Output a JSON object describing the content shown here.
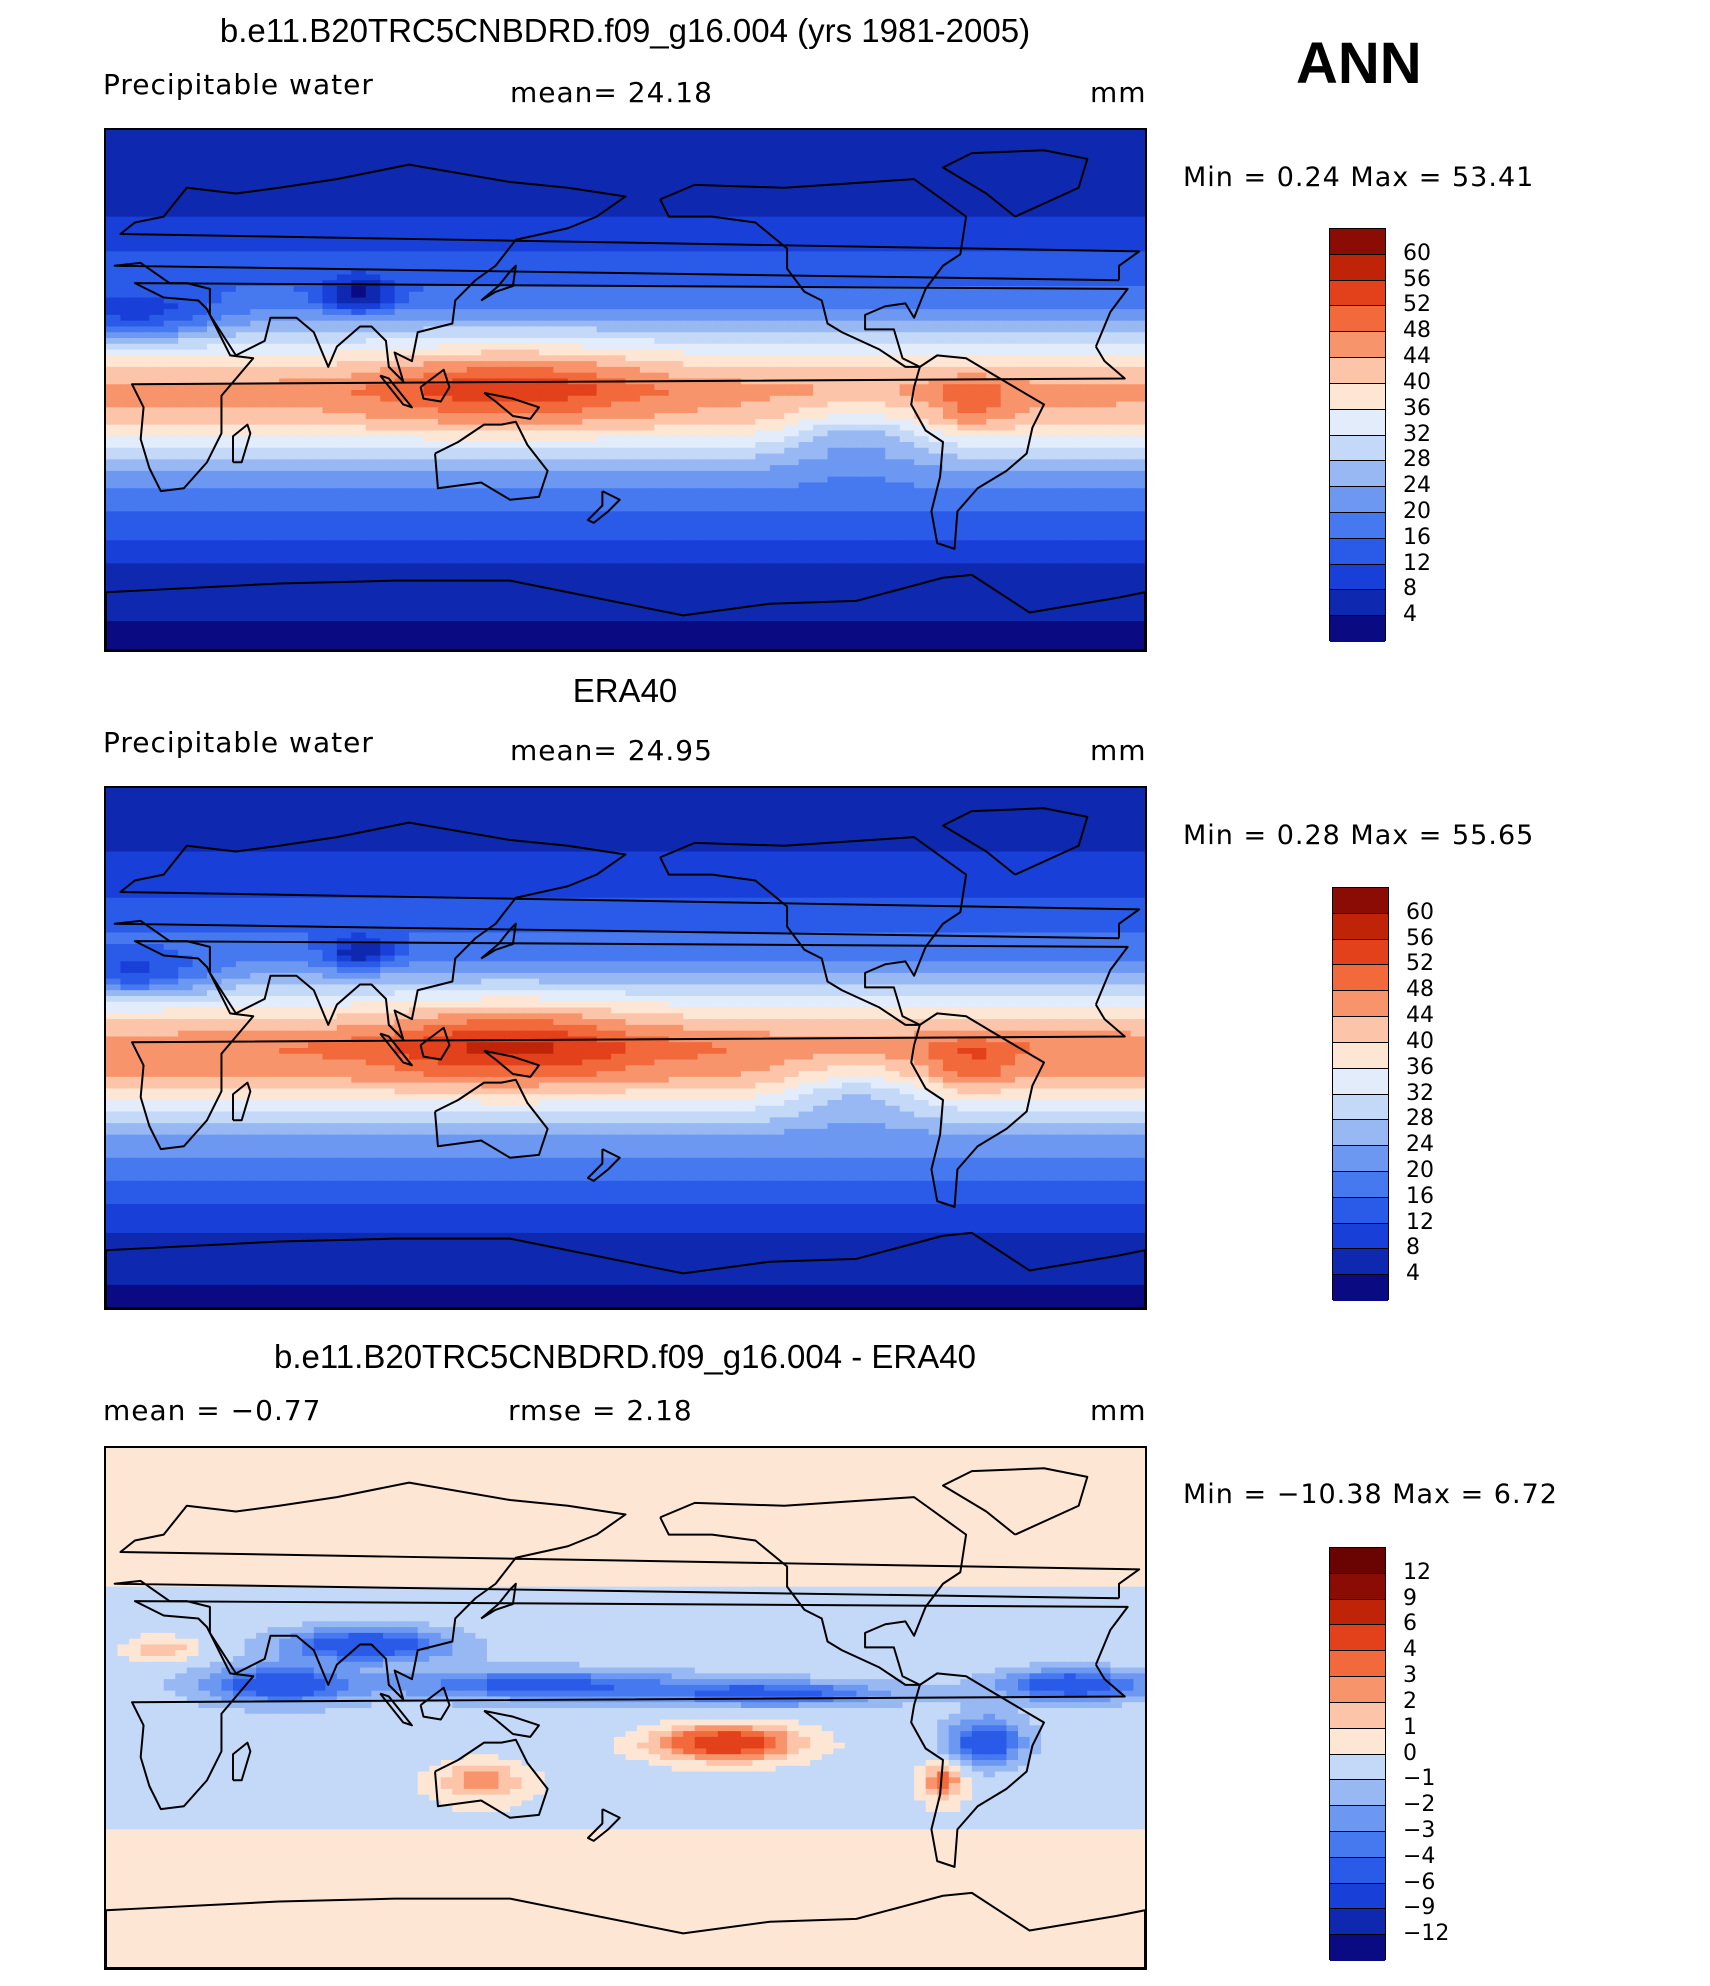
{
  "season": "ANN",
  "panels": [
    {
      "id": "model",
      "title": "b.e11.B20TRC5CNBDRD.f09_g16.004 (yrs 1981-2005)",
      "left_label": "Precipitable  water",
      "center_label": "mean=   24.18",
      "units": "mm",
      "minmax": "Min  =     0.24  Max  =    53.41"
    },
    {
      "id": "obs",
      "title": "ERA40",
      "left_label": "Precipitable  water",
      "center_label": "mean=   24.95",
      "units": "mm",
      "minmax": "Min  =     0.28  Max  =    55.65"
    },
    {
      "id": "diff",
      "title": "b.e11.B20TRC5CNBDRD.f09_g16.004 - ERA40",
      "left_label": "mean  =    −0.77",
      "center_label": "rmse  =     2.18",
      "units": "mm",
      "minmax": "Min  =  −10.38  Max  =     6.72"
    }
  ],
  "chart_data": [
    {
      "type": "heatmap",
      "title": "b.e11.B20TRC5CNBDRD.f09_g16.004 (yrs 1981-2005)",
      "variable": "Precipitable water",
      "units": "mm",
      "mean": 24.18,
      "min": 0.24,
      "max": 53.41,
      "colorbar_levels": [
        4,
        8,
        12,
        16,
        20,
        24,
        28,
        32,
        36,
        40,
        44,
        48,
        52,
        56,
        60
      ],
      "colorbar_colors": [
        "#0a0a82",
        "#0e28b0",
        "#1840d8",
        "#2a5ae8",
        "#4678f0",
        "#6c98f2",
        "#98b8f4",
        "#c4d8f8",
        "#e2ecfa",
        "#fde6d4",
        "#fcc4a8",
        "#f8946c",
        "#f26a3c",
        "#e3401c",
        "#c02408",
        "#8a0c04"
      ],
      "field_profile_lat": [
        90,
        60,
        30,
        10,
        0,
        -10,
        -30,
        -60,
        -90
      ],
      "field_profile_values": [
        4,
        8,
        18,
        38,
        46,
        42,
        22,
        8,
        2
      ]
    },
    {
      "type": "heatmap",
      "title": "ERA40",
      "variable": "Precipitable water",
      "units": "mm",
      "mean": 24.95,
      "min": 0.28,
      "max": 55.65,
      "colorbar_levels": [
        4,
        8,
        12,
        16,
        20,
        24,
        28,
        32,
        36,
        40,
        44,
        48,
        52,
        56,
        60
      ],
      "colorbar_colors": [
        "#0a0a82",
        "#0e28b0",
        "#1840d8",
        "#2a5ae8",
        "#4678f0",
        "#6c98f2",
        "#98b8f4",
        "#c4d8f8",
        "#e2ecfa",
        "#fde6d4",
        "#fcc4a8",
        "#f8946c",
        "#f26a3c",
        "#e3401c",
        "#c02408",
        "#8a0c04"
      ],
      "field_profile_lat": [
        90,
        60,
        30,
        10,
        0,
        -10,
        -30,
        -60,
        -90
      ],
      "field_profile_values": [
        5,
        9,
        20,
        40,
        48,
        44,
        24,
        9,
        2
      ]
    },
    {
      "type": "heatmap",
      "title": "b.e11.B20TRC5CNBDRD.f09_g16.004 - ERA40",
      "units": "mm",
      "mean": -0.77,
      "rmse": 2.18,
      "min": -10.38,
      "max": 6.72,
      "colorbar_levels": [
        "−12",
        "−9",
        "−6",
        "−4",
        "−3",
        "−2",
        "−1",
        "0",
        "1",
        "2",
        "3",
        "4",
        "6",
        "9",
        "12"
      ],
      "colorbar_colors": [
        "#0a0a82",
        "#0e28b0",
        "#1840d8",
        "#2a5ae8",
        "#4678f0",
        "#6c98f2",
        "#98b8f4",
        "#c4d8f8",
        "#fde6d4",
        "#fcc4a8",
        "#f8946c",
        "#f26a3c",
        "#e3401c",
        "#c02408",
        "#8a0c04",
        "#6a0402"
      ]
    }
  ]
}
